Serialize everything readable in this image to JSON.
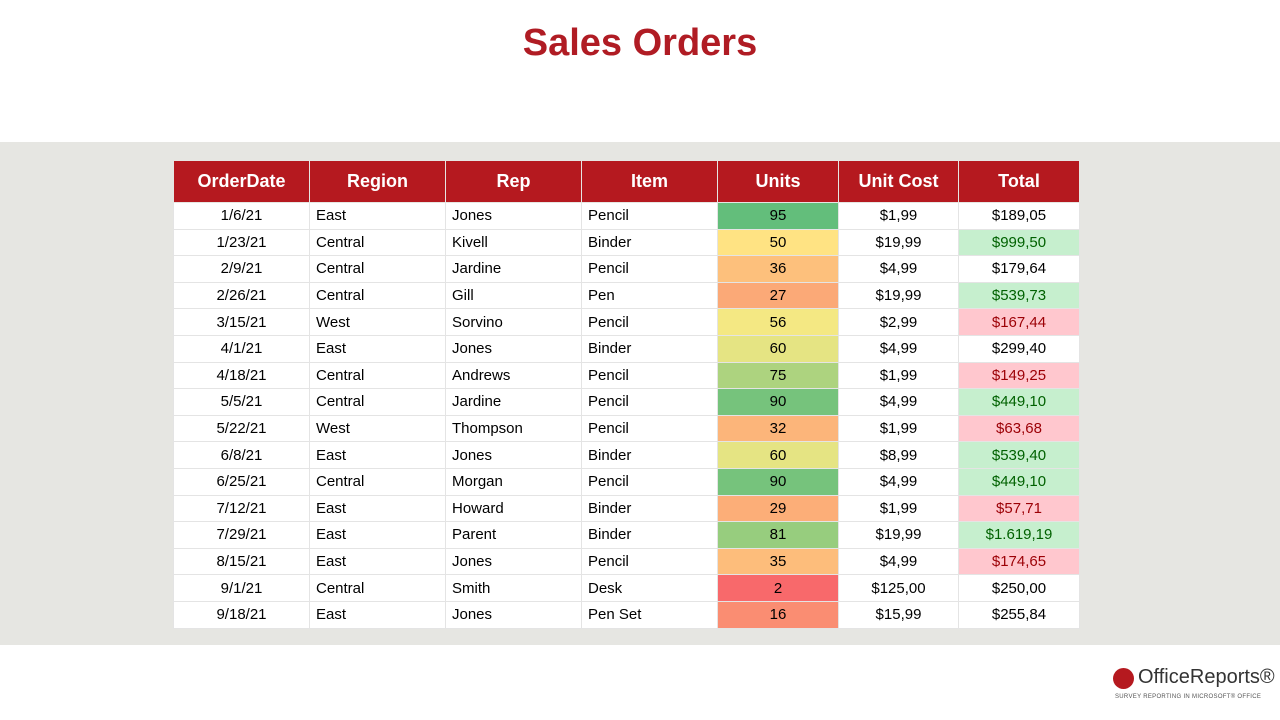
{
  "header": {
    "title": "Sales Orders"
  },
  "table": {
    "columns": [
      "OrderDate",
      "Region",
      "Rep",
      "Item",
      "Units",
      "Unit Cost",
      "Total"
    ],
    "rows": [
      [
        "1/6/21",
        "East",
        "Jones",
        "Pencil",
        95,
        "$1,99",
        "$189,05"
      ],
      [
        "1/23/21",
        "Central",
        "Kivell",
        "Binder",
        50,
        "$19,99",
        "$999,50"
      ],
      [
        "2/9/21",
        "Central",
        "Jardine",
        "Pencil",
        36,
        "$4,99",
        "$179,64"
      ],
      [
        "2/26/21",
        "Central",
        "Gill",
        "Pen",
        27,
        "$19,99",
        "$539,73"
      ],
      [
        "3/15/21",
        "West",
        "Sorvino",
        "Pencil",
        56,
        "$2,99",
        "$167,44"
      ],
      [
        "4/1/21",
        "East",
        "Jones",
        "Binder",
        60,
        "$4,99",
        "$299,40"
      ],
      [
        "4/18/21",
        "Central",
        "Andrews",
        "Pencil",
        75,
        "$1,99",
        "$149,25"
      ],
      [
        "5/5/21",
        "Central",
        "Jardine",
        "Pencil",
        90,
        "$4,99",
        "$449,10"
      ],
      [
        "5/22/21",
        "West",
        "Thompson",
        "Pencil",
        32,
        "$1,99",
        "$63,68"
      ],
      [
        "6/8/21",
        "East",
        "Jones",
        "Binder",
        60,
        "$8,99",
        "$539,40"
      ],
      [
        "6/25/21",
        "Central",
        "Morgan",
        "Pencil",
        90,
        "$4,99",
        "$449,10"
      ],
      [
        "7/12/21",
        "East",
        "Howard",
        "Binder",
        29,
        "$1,99",
        "$57,71"
      ],
      [
        "7/29/21",
        "East",
        "Parent",
        "Binder",
        81,
        "$19,99",
        "$1.619,19"
      ],
      [
        "8/15/21",
        "East",
        "Jones",
        "Pencil",
        35,
        "$4,99",
        "$174,65"
      ],
      [
        "9/1/21",
        "Central",
        "Smith",
        "Desk",
        2,
        "$125,00",
        "$250,00"
      ],
      [
        "9/18/21",
        "East",
        "Jones",
        "Pen Set",
        16,
        "$15,99",
        "$255,84"
      ]
    ],
    "units_scale": {
      "low": "#f8696b",
      "mid": "#ffeb84",
      "high": "#63be7b"
    },
    "total_styles": [
      "plain",
      "good",
      "plain",
      "good",
      "bad",
      "plain",
      "bad",
      "good",
      "bad",
      "good",
      "good",
      "bad",
      "good",
      "bad",
      "plain",
      "plain"
    ],
    "styles": {
      "plain": {
        "fill": "#ffffff",
        "color": "#000000"
      },
      "good": {
        "fill": "#c6efce",
        "color": "#006100"
      },
      "bad": {
        "fill": "#ffc7ce",
        "color": "#9c0006"
      }
    }
  },
  "logo": {
    "name": "OfficeReports®",
    "tagline": "SURVEY REPORTING IN MICROSOFT® OFFICE"
  }
}
